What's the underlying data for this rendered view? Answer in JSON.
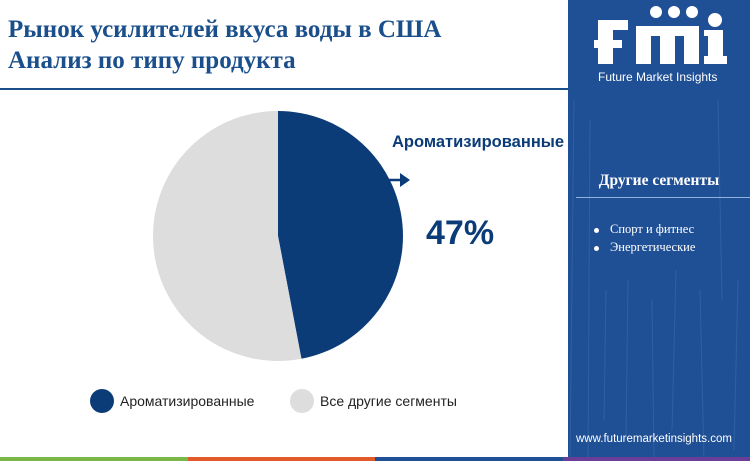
{
  "header": {
    "title_line1": "Рынок усилителей вкуса воды в США",
    "title_line2": "Анализ по типу продукта"
  },
  "chart_data": {
    "type": "pie",
    "categories": [
      "Ароматизированные",
      "Все другие сегменты"
    ],
    "values": [
      47,
      53
    ],
    "colors": [
      "#0b3c78",
      "#dddddd"
    ],
    "unit": "%",
    "highlight": {
      "label": "Ароматизированные",
      "value_label": "47%"
    },
    "legend": {
      "placement": "bottom",
      "items": [
        "Ароматизированные",
        "Все другие сегменты"
      ]
    }
  },
  "sidebar": {
    "logo_tagline": "Future Market Insights",
    "segments_title": "Другие сегменты",
    "segments": [
      "Спорт и фитнес",
      "Энергетические"
    ],
    "website": "www.futuremarketinsights.com"
  },
  "colors": {
    "brand_blue": "#1f4f95",
    "title_blue": "#1a4f8b",
    "bottom_bar": [
      "#7ab648",
      "#e15a29",
      "#1f4f95",
      "#6a3e98"
    ]
  }
}
